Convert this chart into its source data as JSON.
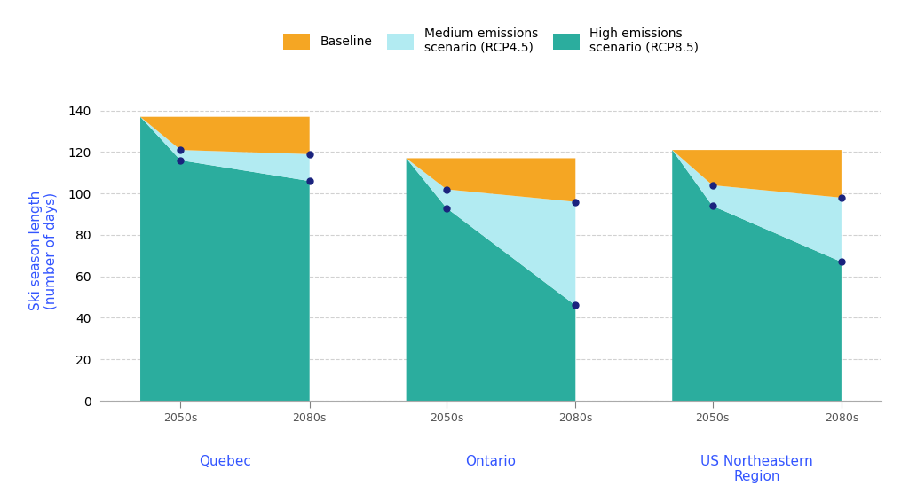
{
  "regions": [
    "Quebec",
    "Ontario",
    "US Northeastern\nRegion"
  ],
  "baseline": [
    137,
    117,
    121
  ],
  "rcp45_2050s": [
    121,
    102,
    104
  ],
  "rcp45_2080s": [
    119,
    96,
    98
  ],
  "rcp85_2050s": [
    116,
    93,
    94
  ],
  "rcp85_2080s": [
    106,
    46,
    67
  ],
  "color_baseline": "#F5A623",
  "color_rcp45": "#B2EBF2",
  "color_rcp85": "#2BAD9E",
  "color_dot": "#1A237E",
  "color_label": "#3355FF",
  "color_axis_label": "#3355FF",
  "color_grid": "#CCCCCC",
  "color_bg": "#FFFFFF",
  "ylabel": "Ski season length\n(number of days)",
  "ylim": [
    0,
    145
  ],
  "yticks": [
    0,
    20,
    40,
    60,
    80,
    100,
    120,
    140
  ],
  "xtick_color": "#555555",
  "spine_color": "#AAAAAA"
}
